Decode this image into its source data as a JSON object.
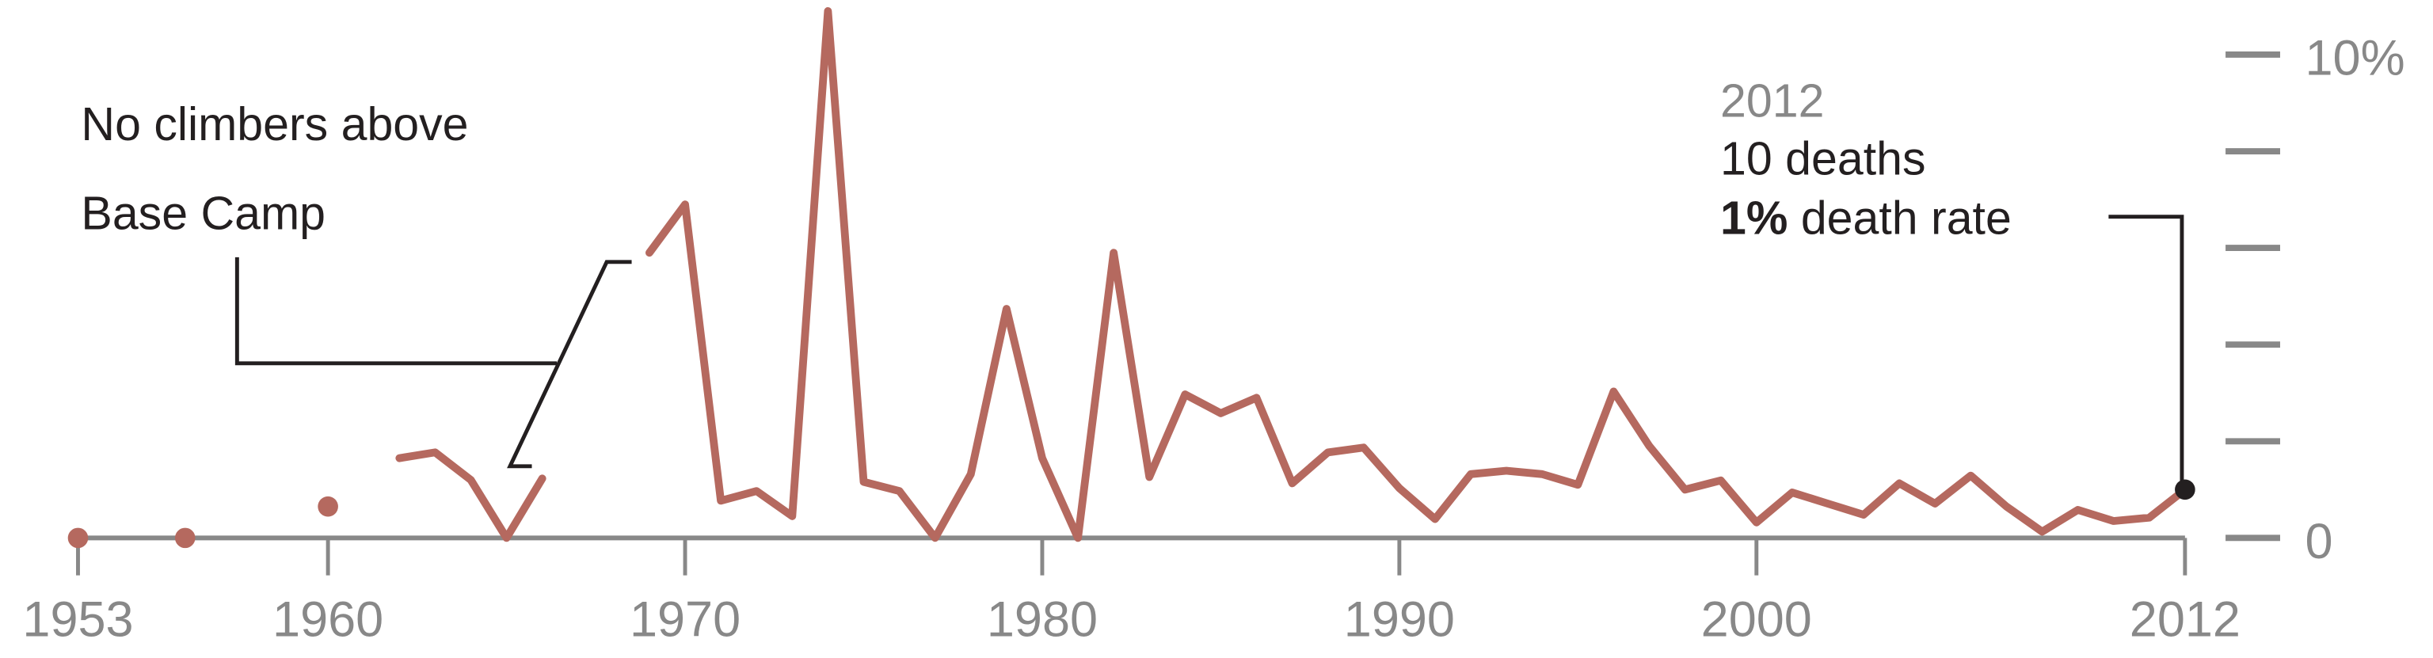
{
  "chart_data": {
    "type": "line",
    "title": "",
    "xlabel": "",
    "ylabel": "",
    "xlim": [
      1953,
      2012
    ],
    "ylim": [
      0,
      10
    ],
    "y_unit": "%",
    "grid": false,
    "x_ticks": [
      1953,
      1960,
      1970,
      1980,
      1990,
      2000,
      2012
    ],
    "x_tick_labels": [
      "1953",
      "1960",
      "1970",
      "1980",
      "1990",
      "2000",
      "2012"
    ],
    "y_ticks": [
      0,
      2,
      4,
      6,
      8,
      10
    ],
    "y_tick_labels": [
      "0",
      "",
      "",
      "",
      "",
      "10%"
    ],
    "series_color": "#b5695f",
    "axis_color": "#888888",
    "x": [
      1953,
      1954,
      1955,
      1956,
      1957,
      1958,
      1959,
      1960,
      1961,
      1962,
      1963,
      1964,
      1965,
      1966,
      1967,
      1968,
      1969,
      1970,
      1971,
      1972,
      1973,
      1974,
      1975,
      1976,
      1977,
      1978,
      1979,
      1980,
      1981,
      1982,
      1983,
      1984,
      1985,
      1986,
      1987,
      1988,
      1989,
      1990,
      1991,
      1992,
      1993,
      1994,
      1995,
      1996,
      1997,
      1998,
      1999,
      2000,
      2001,
      2002,
      2003,
      2004,
      2005,
      2006,
      2007,
      2008,
      2009,
      2010,
      2011,
      2012
    ],
    "values": [
      0,
      null,
      null,
      0,
      null,
      null,
      null,
      0.65,
      null,
      1.65,
      1.77,
      1.2,
      0,
      1.23,
      null,
      null,
      5.9,
      6.9,
      0.77,
      0.97,
      0.45,
      10.9,
      1.16,
      0.97,
      0,
      1.32,
      4.74,
      1.65,
      0,
      5.9,
      1.26,
      2.97,
      2.58,
      2.9,
      1.13,
      1.77,
      1.87,
      1.03,
      0.39,
      1.32,
      1.39,
      1.32,
      1.1,
      3.03,
      1.9,
      1.0,
      1.19,
      0.32,
      0.94,
      0.71,
      0.48,
      1.13,
      0.71,
      1.29,
      0.65,
      0.13,
      0.58,
      0.35,
      0.42,
      1.0
    ],
    "annotations": {
      "no_climbers": [
        "No climbers above",
        "Base Camp"
      ],
      "highlight": {
        "year": "2012",
        "deaths": "10 deaths",
        "rate_bold": "1%",
        "rate_rest": " death rate"
      }
    }
  }
}
